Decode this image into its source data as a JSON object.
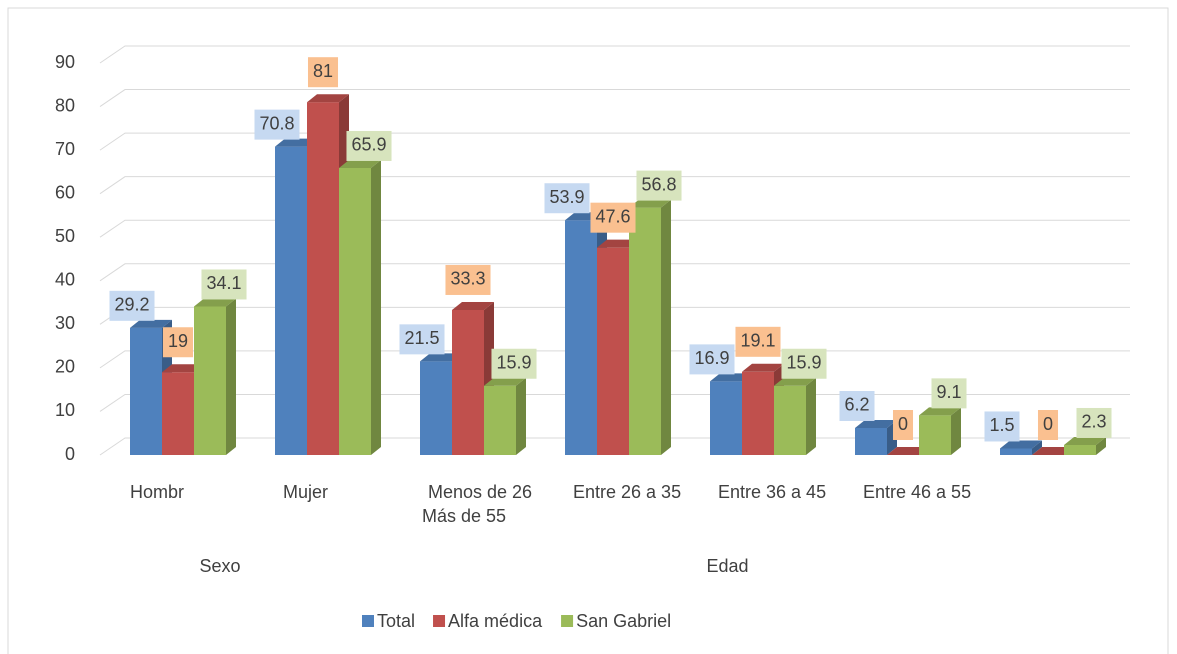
{
  "chart_data": {
    "type": "bar3d",
    "categories": [
      "Hombr",
      "Mujer",
      "Menos de 26",
      "Entre 26 a 35",
      "Entre 36 a 45",
      "Entre 46 a 55",
      "Más de 55"
    ],
    "groups": [
      {
        "name": "Sexo",
        "span": [
          0,
          1
        ]
      },
      {
        "name": "Edad",
        "span": [
          2,
          6
        ]
      }
    ],
    "series": [
      {
        "name": "Total",
        "color": "#4f81bd",
        "label_color": "#c6d9f1",
        "values": [
          29.2,
          70.8,
          21.5,
          53.9,
          16.9,
          6.2,
          1.5
        ]
      },
      {
        "name": "Alfa médica",
        "color": "#c0504d",
        "label_color": "#fac090",
        "values": [
          19,
          81,
          33.3,
          47.6,
          19.1,
          0,
          0
        ]
      },
      {
        "name": "San Gabriel",
        "color": "#9bbb59",
        "label_color": "#d7e4bd",
        "values": [
          34.1,
          65.9,
          15.9,
          56.8,
          15.9,
          9.1,
          2.3
        ]
      }
    ],
    "ylim": [
      0,
      90
    ],
    "yticks": [
      0,
      10,
      20,
      30,
      40,
      50,
      60,
      70,
      80,
      90
    ],
    "grid": true,
    "legend": "bottom"
  }
}
